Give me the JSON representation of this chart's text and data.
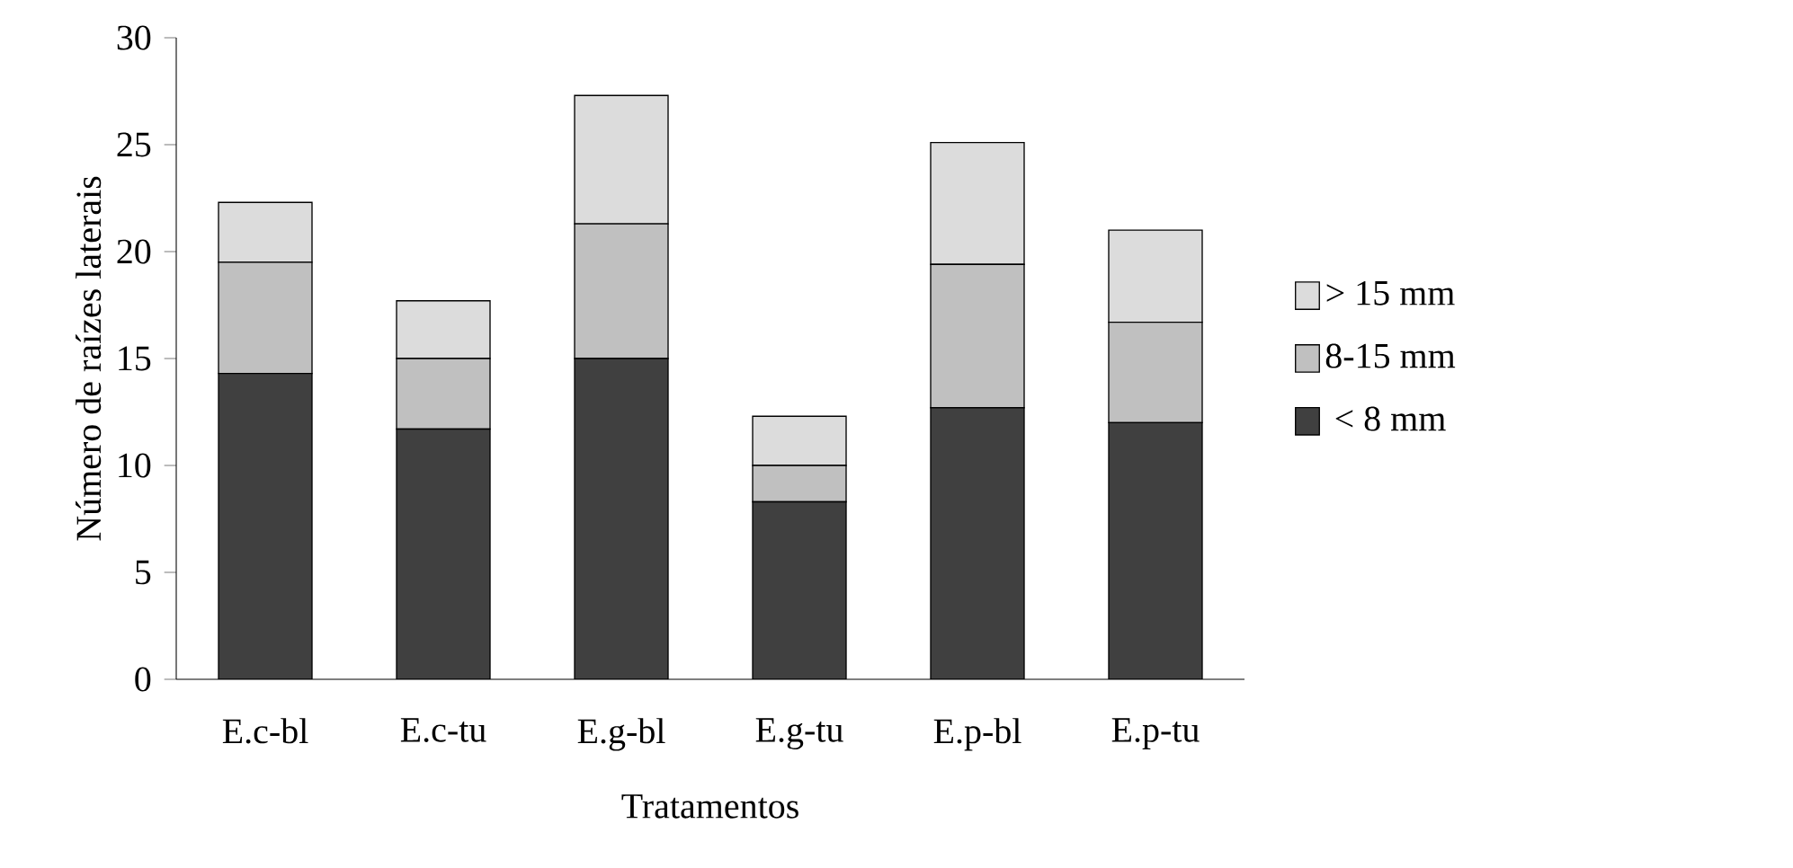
{
  "chart_data": {
    "type": "bar",
    "stacked": true,
    "ylabel": "Número de raízes laterais",
    "xlabel": "Tratamentos",
    "categories": [
      "E.c-bl",
      "E.c-tu",
      "E.g-bl",
      "E.g-tu",
      "E.p-bl",
      "E.p-tu"
    ],
    "series": [
      {
        "name": "< 8 mm",
        "color": "#404040",
        "values": [
          14.3,
          11.7,
          15.0,
          8.3,
          12.7,
          12.0
        ]
      },
      {
        "name": "8-15 mm",
        "color": "#c0c0c0",
        "values": [
          5.2,
          3.3,
          6.3,
          1.7,
          6.7,
          4.7
        ]
      },
      {
        "name": "> 15 mm",
        "color": "#dcdcdc",
        "values": [
          2.8,
          2.7,
          6.0,
          2.3,
          5.7,
          4.3
        ]
      }
    ],
    "ylim": [
      0,
      30
    ],
    "yticks": [
      0,
      5,
      10,
      15,
      20,
      25,
      30
    ],
    "legend": "right"
  }
}
